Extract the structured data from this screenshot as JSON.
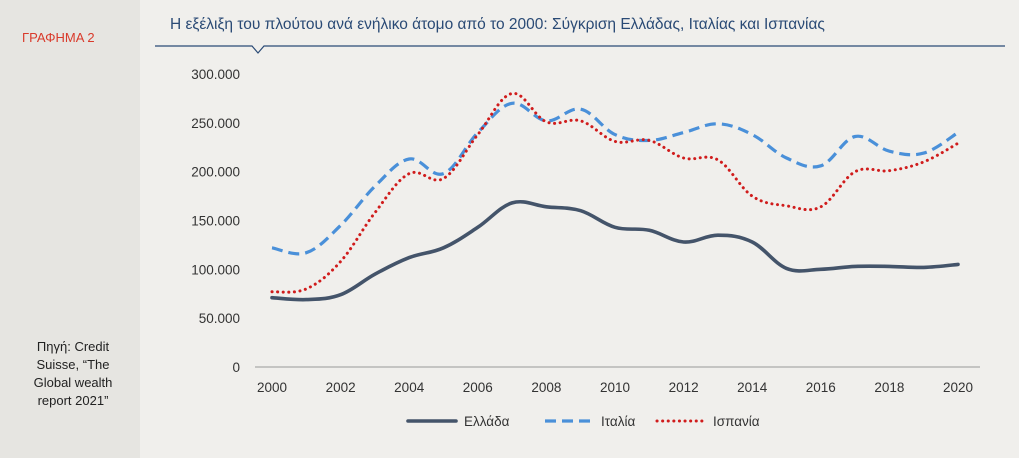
{
  "figure_label": "ΓΡΑΦΗΜΑ 2",
  "source_note": "Πηγή: Credit Suisse, “The Global wealth report 2021”",
  "chart_data": {
    "type": "line",
    "title": "Η εξέλιξη του πλούτου ανά ενήλικο άτομο από το 2000: Σύγκριση Ελλάδας, Ιταλίας και Ισπανίας",
    "xlabel": "",
    "ylabel": "",
    "ylim": [
      0,
      300000
    ],
    "yticks": [
      "0",
      "50.000",
      "100.000",
      "150.000",
      "200.000",
      "250.000",
      "300.000"
    ],
    "xticks": [
      "2000",
      "2002",
      "2004",
      "2006",
      "2008",
      "2010",
      "2012",
      "2014",
      "2016",
      "2018",
      "2020"
    ],
    "x": [
      2000,
      2001,
      2002,
      2003,
      2004,
      2005,
      2006,
      2007,
      2008,
      2009,
      2010,
      2011,
      2012,
      2013,
      2014,
      2015,
      2016,
      2017,
      2018,
      2019,
      2020
    ],
    "legend_position": "bottom",
    "grid": false,
    "series": [
      {
        "name": "Ελλάδα",
        "color": "#44546a",
        "style": "solid",
        "values": [
          71000,
          69000,
          74000,
          95000,
          112000,
          122000,
          143000,
          168000,
          164000,
          160000,
          143000,
          140000,
          128000,
          135000,
          128000,
          101000,
          100000,
          103000,
          103000,
          102000,
          105000
        ]
      },
      {
        "name": "Ιταλία",
        "color": "#4a90d9",
        "style": "dashed",
        "values": [
          122000,
          117000,
          145000,
          185000,
          213000,
          198000,
          240000,
          270000,
          252000,
          264000,
          238000,
          232000,
          240000,
          249000,
          238000,
          214000,
          206000,
          236000,
          221000,
          219000,
          240000
        ]
      },
      {
        "name": "Ισπανία",
        "color": "#d01c1c",
        "style": "dotted",
        "values": [
          77000,
          80000,
          108000,
          158000,
          198000,
          193000,
          238000,
          280000,
          251000,
          252000,
          231000,
          232000,
          214000,
          212000,
          175000,
          165000,
          164000,
          200000,
          201000,
          210000,
          229000
        ]
      }
    ]
  }
}
